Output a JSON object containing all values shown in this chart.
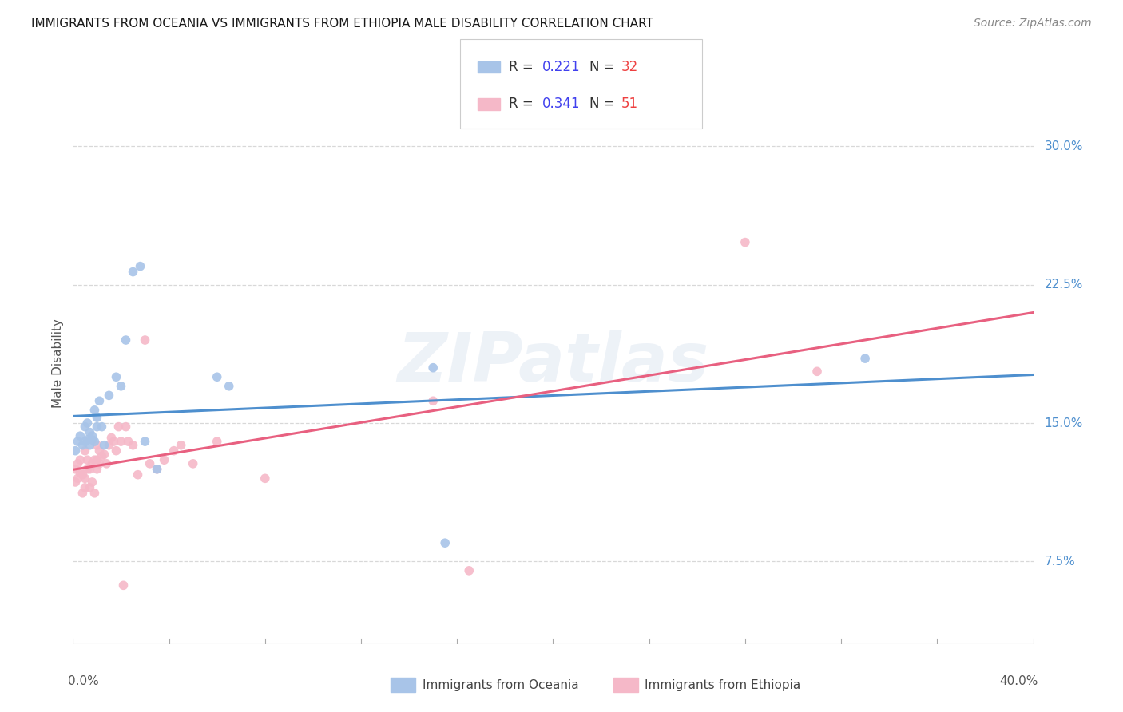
{
  "title": "IMMIGRANTS FROM OCEANIA VS IMMIGRANTS FROM ETHIOPIA MALE DISABILITY CORRELATION CHART",
  "source": "Source: ZipAtlas.com",
  "ylabel": "Male Disability",
  "ytick_labels": [
    "7.5%",
    "15.0%",
    "22.5%",
    "30.0%"
  ],
  "ytick_vals": [
    0.075,
    0.15,
    0.225,
    0.3
  ],
  "xlim": [
    0.0,
    0.4
  ],
  "ylim": [
    0.03,
    0.335
  ],
  "background_color": "#ffffff",
  "grid_color": "#d8d8d8",
  "watermark": "ZIPatlas",
  "oceania_color": "#a8c4e8",
  "oceania_line_color": "#4e8fce",
  "ethiopia_color": "#f5b8c8",
  "ethiopia_line_color": "#e86080",
  "R_color": "#4040ee",
  "N_color": "#ee4040",
  "oceania_R": 0.221,
  "oceania_N": 32,
  "ethiopia_R": 0.341,
  "ethiopia_N": 51,
  "oceania_x": [
    0.001,
    0.002,
    0.003,
    0.004,
    0.005,
    0.005,
    0.006,
    0.006,
    0.007,
    0.007,
    0.008,
    0.008,
    0.009,
    0.009,
    0.01,
    0.01,
    0.011,
    0.012,
    0.013,
    0.015,
    0.018,
    0.02,
    0.022,
    0.025,
    0.028,
    0.03,
    0.035,
    0.06,
    0.065,
    0.15,
    0.155,
    0.33
  ],
  "oceania_y": [
    0.135,
    0.14,
    0.143,
    0.138,
    0.148,
    0.14,
    0.141,
    0.15,
    0.138,
    0.145,
    0.143,
    0.141,
    0.14,
    0.157,
    0.153,
    0.148,
    0.162,
    0.148,
    0.138,
    0.165,
    0.175,
    0.17,
    0.195,
    0.232,
    0.235,
    0.14,
    0.125,
    0.175,
    0.17,
    0.18,
    0.085,
    0.185
  ],
  "ethiopia_x": [
    0.001,
    0.001,
    0.002,
    0.002,
    0.003,
    0.003,
    0.004,
    0.004,
    0.005,
    0.005,
    0.005,
    0.006,
    0.006,
    0.007,
    0.007,
    0.008,
    0.008,
    0.009,
    0.009,
    0.01,
    0.01,
    0.01,
    0.011,
    0.011,
    0.012,
    0.013,
    0.014,
    0.015,
    0.016,
    0.017,
    0.018,
    0.019,
    0.02,
    0.021,
    0.022,
    0.023,
    0.025,
    0.027,
    0.03,
    0.032,
    0.035,
    0.038,
    0.042,
    0.045,
    0.05,
    0.06,
    0.08,
    0.15,
    0.165,
    0.28,
    0.31
  ],
  "ethiopia_y": [
    0.118,
    0.125,
    0.12,
    0.128,
    0.123,
    0.13,
    0.112,
    0.122,
    0.115,
    0.12,
    0.135,
    0.125,
    0.13,
    0.125,
    0.115,
    0.128,
    0.118,
    0.112,
    0.13,
    0.125,
    0.13,
    0.138,
    0.128,
    0.135,
    0.132,
    0.133,
    0.128,
    0.138,
    0.142,
    0.14,
    0.135,
    0.148,
    0.14,
    0.062,
    0.148,
    0.14,
    0.138,
    0.122,
    0.195,
    0.128,
    0.125,
    0.13,
    0.135,
    0.138,
    0.128,
    0.14,
    0.12,
    0.162,
    0.07,
    0.248,
    0.178
  ]
}
